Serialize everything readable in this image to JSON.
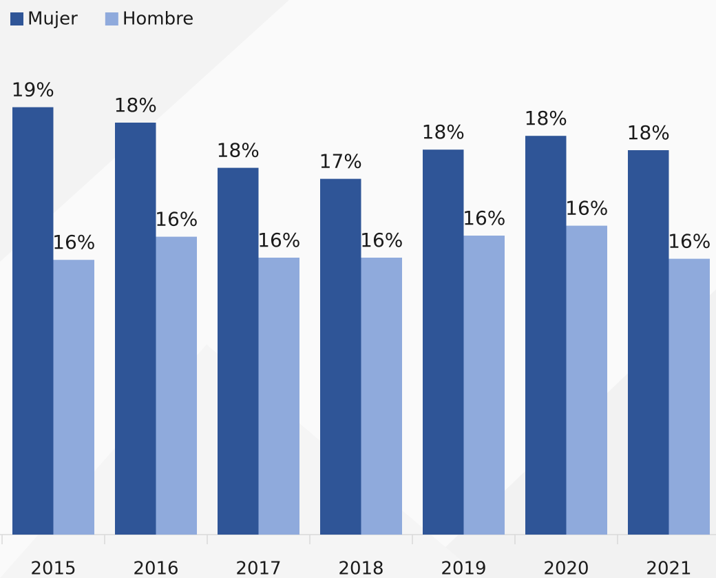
{
  "chart_data": {
    "type": "bar",
    "categories": [
      "2015",
      "2016",
      "2017",
      "2018",
      "2019",
      "2020",
      "2021"
    ],
    "series": [
      {
        "name": "Mujer",
        "color": "#2f5597",
        "values": [
          18.63,
          18.35,
          17.53,
          17.33,
          17.86,
          18.11,
          17.85
        ],
        "value_labels": [
          "19%",
          "18%",
          "18%",
          "17%",
          "18%",
          "18%",
          "18%"
        ]
      },
      {
        "name": "Hombre",
        "color": "#8faadc",
        "values": [
          15.86,
          16.28,
          15.9,
          15.9,
          16.3,
          16.48,
          15.88
        ],
        "value_labels": [
          "16%",
          "16%",
          "16%",
          "16%",
          "16%",
          "16%",
          "16%"
        ]
      }
    ],
    "ylim": [
      10.875,
      20.075
    ],
    "legend": "top-left"
  }
}
